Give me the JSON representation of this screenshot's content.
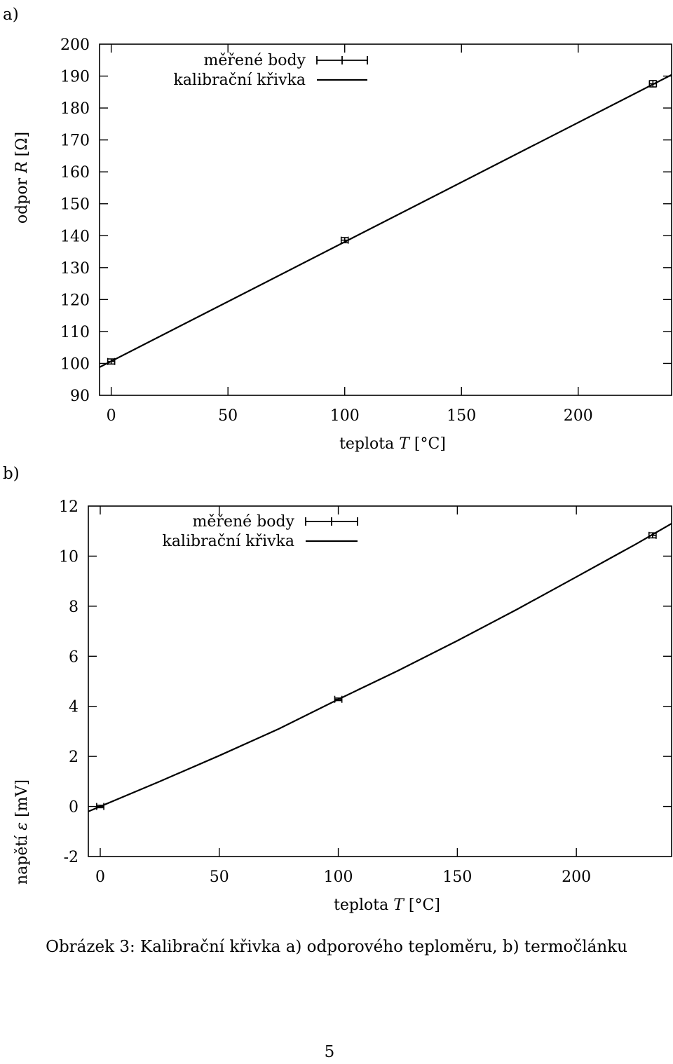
{
  "chart_data": [
    {
      "panel_label": "a)",
      "type": "line",
      "xlabel": "teplota T [°C]",
      "ylabel": "odpor R [Ω]",
      "xlim": [
        -5,
        240
      ],
      "ylim": [
        90,
        200
      ],
      "xticks": [
        0,
        50,
        100,
        150,
        200
      ],
      "yticks": [
        90,
        100,
        110,
        120,
        130,
        140,
        150,
        160,
        170,
        180,
        190,
        200
      ],
      "legend_position": "top-center",
      "series": [
        {
          "name": "měřené body",
          "style": "errorbars",
          "points": [
            {
              "x": 0,
              "y": 100.6,
              "xerr": 1.5,
              "yerr": 0.8
            },
            {
              "x": 100,
              "y": 138.6,
              "xerr": 1.5,
              "yerr": 0.8
            },
            {
              "x": 232,
              "y": 187.6,
              "xerr": 1.5,
              "yerr": 1.0
            }
          ]
        },
        {
          "name": "kalibrační křivka",
          "style": "line",
          "x": [
            -5,
            240
          ],
          "y": [
            98.8,
            190.4
          ]
        }
      ]
    },
    {
      "panel_label": "b)",
      "type": "line",
      "xlabel": "teplota T [°C]",
      "ylabel": "napětí ε [mV]",
      "xlim": [
        -5,
        240
      ],
      "ylim": [
        -2,
        12
      ],
      "xticks": [
        0,
        50,
        100,
        150,
        200
      ],
      "yticks": [
        -2,
        0,
        2,
        4,
        6,
        8,
        10,
        12
      ],
      "legend_position": "top-center",
      "series": [
        {
          "name": "měřené body",
          "style": "errorbars",
          "points": [
            {
              "x": 0,
              "y": 0.0,
              "xerr": 1.5,
              "yerr": 0.05
            },
            {
              "x": 100,
              "y": 4.28,
              "xerr": 1.5,
              "yerr": 0.05
            },
            {
              "x": 232,
              "y": 10.83,
              "xerr": 1.5,
              "yerr": 0.1
            }
          ]
        },
        {
          "name": "kalibrační křivka",
          "style": "line",
          "x": [
            -5,
            0,
            25,
            50,
            75,
            100,
            125,
            150,
            175,
            200,
            225,
            240
          ],
          "y": [
            -0.2,
            0.0,
            1.0,
            2.03,
            3.1,
            4.28,
            5.42,
            6.62,
            7.87,
            9.17,
            10.48,
            11.3
          ]
        }
      ]
    }
  ],
  "caption": "Obrázek 3: Kalibrační křivka a) odporového teploměru, b) termočlánku",
  "page_number": "5"
}
